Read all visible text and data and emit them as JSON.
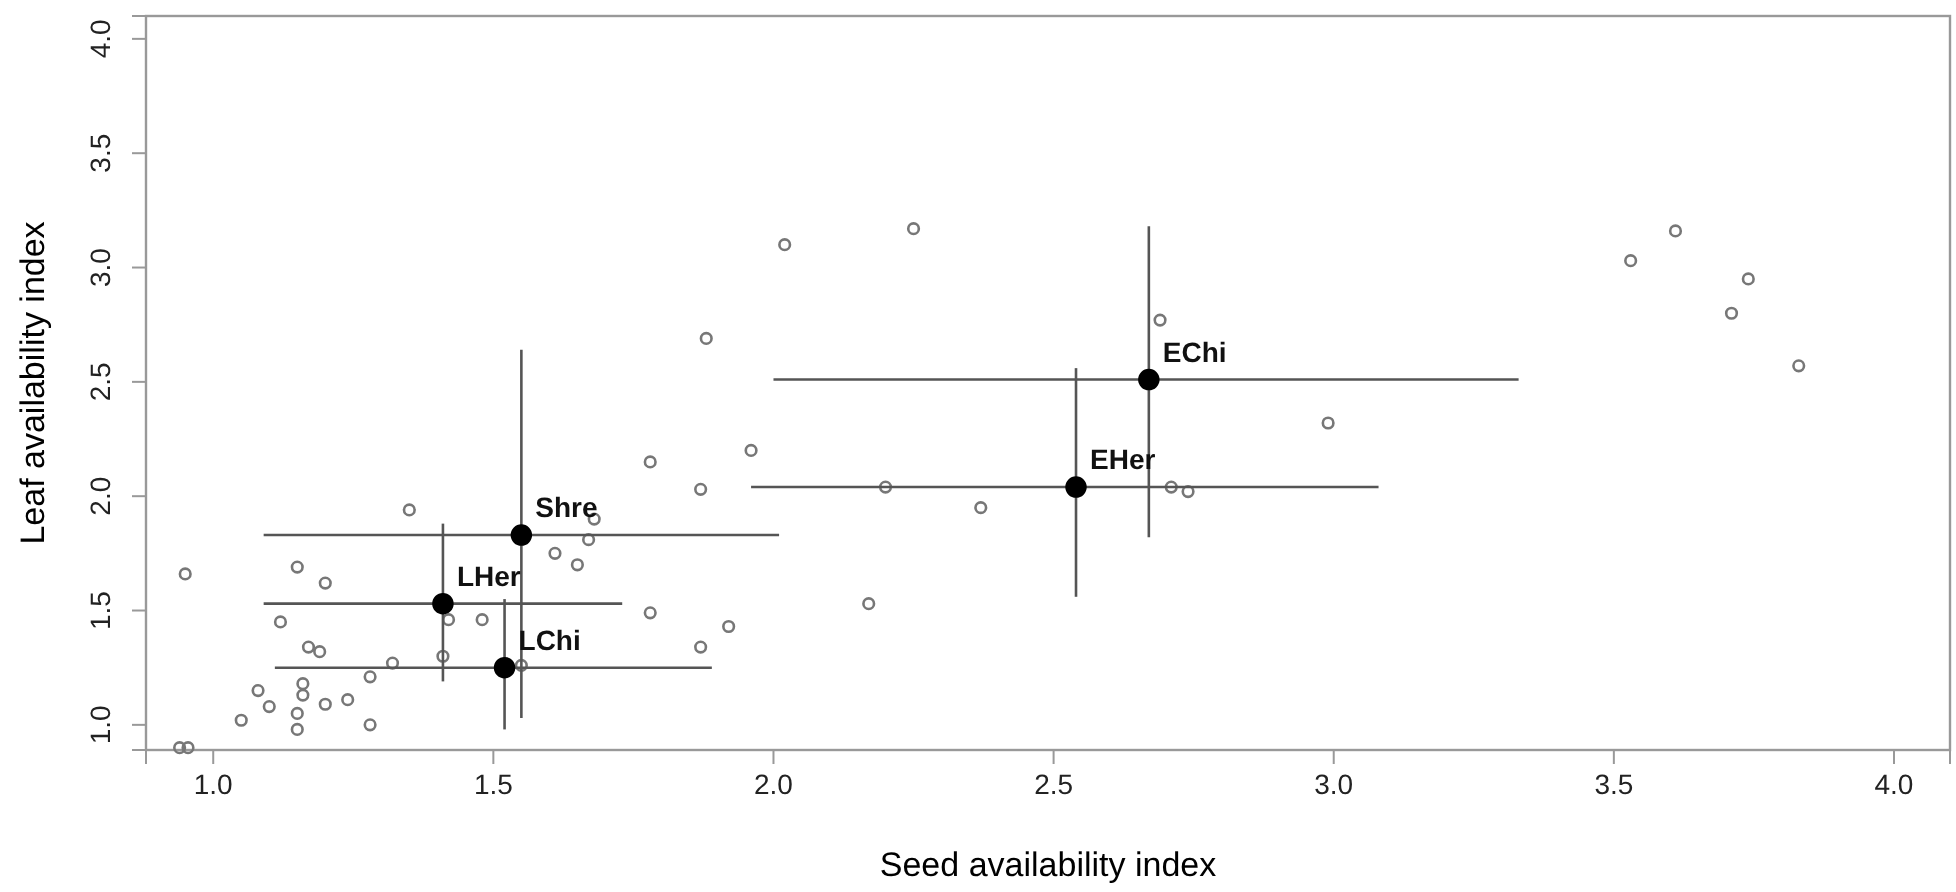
{
  "chart_data": {
    "type": "scatter",
    "xlabel": "Seed availability index",
    "ylabel": "Leaf availability index",
    "xlim": [
      0.88,
      4.1
    ],
    "ylim": [
      0.89,
      4.1
    ],
    "xticks": [
      {
        "value": 1,
        "label": "1.0"
      },
      {
        "value": 1.5,
        "label": "1.5"
      },
      {
        "value": 2,
        "label": "2.0"
      },
      {
        "value": 2.5,
        "label": "2.5"
      },
      {
        "value": 3,
        "label": "3.0"
      },
      {
        "value": 3.5,
        "label": "3.5"
      },
      {
        "value": 4,
        "label": "4.0"
      }
    ],
    "yticks": [
      {
        "value": 1,
        "label": "1.0"
      },
      {
        "value": 1.5,
        "label": "1.5"
      },
      {
        "value": 2,
        "label": "2.0"
      },
      {
        "value": 2.5,
        "label": "2.5"
      },
      {
        "value": 3,
        "label": "3.0"
      },
      {
        "value": 3.5,
        "label": "3.5"
      },
      {
        "value": 4,
        "label": "4.0"
      }
    ],
    "marker": "circle",
    "series": [
      {
        "color": "#777777",
        "x": [
          0.95,
          0.94,
          0.955,
          1.05,
          1.08,
          1.1,
          1.12,
          1.15,
          1.15,
          1.15,
          1.16,
          1.16,
          1.17,
          1.19,
          1.2,
          1.2,
          1.24,
          1.28,
          1.28,
          1.32,
          1.35,
          1.41,
          1.42,
          1.48,
          1.55,
          1.61,
          1.65,
          1.67,
          1.68,
          1.78,
          1.78,
          1.87,
          1.87,
          1.88,
          1.92,
          1.96,
          2.02,
          2.25,
          2.2,
          2.37,
          2.17,
          2.69,
          2.99,
          2.71,
          2.74,
          3.61,
          3.53,
          3.74,
          3.71,
          3.83
        ],
        "values": [
          1.66,
          0.9,
          0.9,
          1.02,
          1.15,
          1.08,
          1.45,
          1.69,
          1.05,
          0.98,
          1.18,
          1.13,
          1.34,
          1.32,
          1.62,
          1.09,
          1.11,
          1.21,
          1.0,
          1.27,
          1.94,
          1.3,
          1.46,
          1.46,
          1.26,
          1.75,
          1.7,
          1.81,
          1.9,
          1.49,
          2.15,
          2.03,
          1.34,
          2.69,
          1.43,
          2.2,
          3.1,
          3.17,
          2.04,
          1.95,
          1.53,
          2.77,
          2.32,
          2.04,
          2.02,
          3.16,
          3.03,
          2.95,
          2.8,
          2.57
        ]
      },
      {
        "color": "#000000",
        "x": [
          1.55,
          1.41,
          1.52,
          2.67,
          2.54
        ],
        "values": [
          1.83,
          1.53,
          1.25,
          2.51,
          2.04
        ],
        "errors": [
          [
            1.03,
            2.64
          ],
          [
            1.19,
            1.88
          ],
          [
            0.98,
            1.55
          ],
          [
            1.82,
            3.18
          ],
          [
            1.56,
            2.56
          ]
        ],
        "xerrors": [
          [
            1.09,
            2.01
          ],
          [
            1.09,
            1.73
          ],
          [
            1.11,
            1.89
          ],
          [
            2.0,
            3.33
          ],
          [
            1.96,
            3.08
          ]
        ]
      }
    ],
    "annotations": [
      {
        "text": "Shre",
        "x": 1.55,
        "y": 1.83
      },
      {
        "text": "LHer",
        "x": 1.41,
        "y": 1.53
      },
      {
        "text": "LChi",
        "x": 1.52,
        "y": 1.25
      },
      {
        "text": "EChi",
        "x": 2.67,
        "y": 2.51
      },
      {
        "text": "EHer",
        "x": 2.54,
        "y": 2.04
      }
    ]
  }
}
